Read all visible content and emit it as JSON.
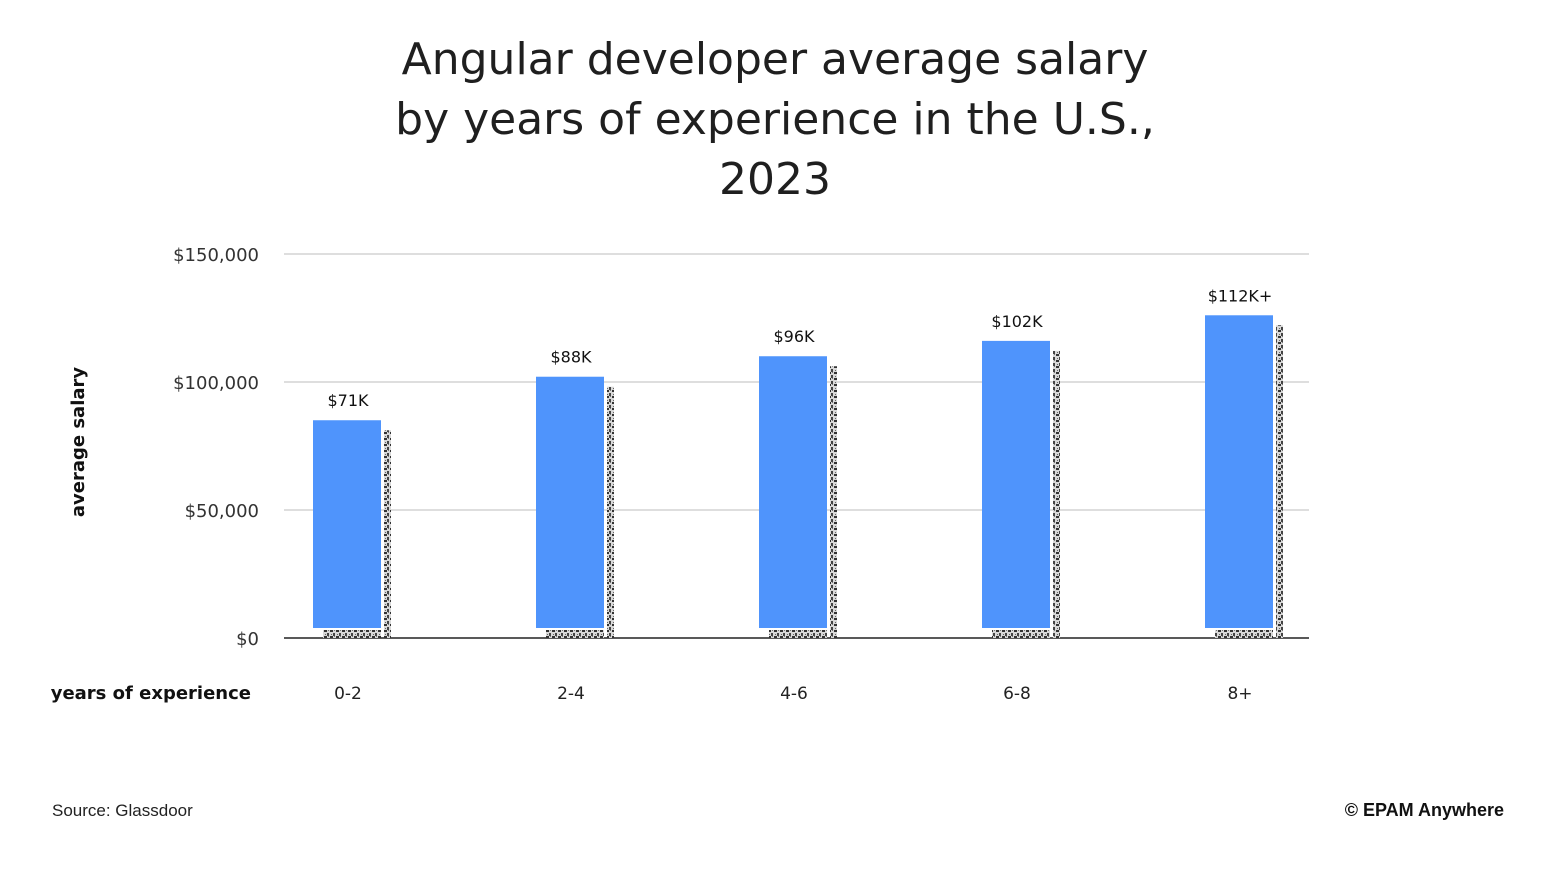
{
  "chart_data": {
    "type": "bar",
    "title_lines": [
      "Angular developer average salary",
      "by years of experience in the U.S.,",
      "2023"
    ],
    "ylabel": "average salary",
    "xlabel": "years of experience",
    "categories": [
      "0-2",
      "2-4",
      "4-6",
      "6-8",
      "8+"
    ],
    "values": [
      71000,
      88000,
      96000,
      102000,
      112000
    ],
    "value_labels": [
      "$71K",
      "$88K",
      "$96K",
      "$102K",
      "$112K+"
    ],
    "ylim": [
      0,
      150000
    ],
    "yticks": [
      0,
      50000,
      100000,
      150000
    ],
    "ytick_labels": [
      "$0",
      "$50,000",
      "$100,000",
      "$150,000"
    ],
    "grid": true,
    "bar_color": "#4f94fc"
  },
  "footer": {
    "source": "Source: Glassdoor",
    "brand": "© EPAM Anywhere"
  }
}
